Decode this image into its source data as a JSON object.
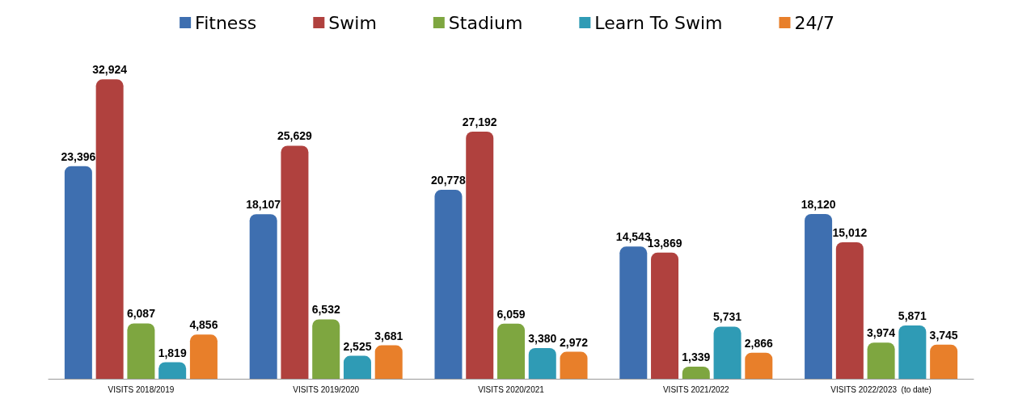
{
  "chart_data": {
    "type": "bar",
    "categories": [
      "VISITS 2018/2019",
      "VISITS 2019/2020",
      "VISITS 2020/2021",
      "VISITS 2021/2022",
      "VISITS 2022/2023  (to date)"
    ],
    "series": [
      {
        "name": "Fitness",
        "color": "#3e6fb0",
        "values": [
          23396,
          18107,
          20778,
          14543,
          18120
        ],
        "value_labels": [
          "23,396",
          "18,107",
          "20,778",
          "14,543",
          "18,120"
        ]
      },
      {
        "name": "Swim",
        "color": "#b0413e",
        "values": [
          32924,
          25629,
          27192,
          13869,
          15012
        ],
        "value_labels": [
          "32,924",
          "25,629",
          "27,192",
          "13,869",
          "15,012"
        ]
      },
      {
        "name": "Stadium",
        "color": "#7ea640",
        "values": [
          6087,
          6532,
          6059,
          1339,
          3974
        ],
        "value_labels": [
          "6,087",
          "6,532",
          "6,059",
          "1,339",
          "3,974"
        ]
      },
      {
        "name": "Learn To Swim",
        "color": "#2f9bb5",
        "values": [
          1819,
          2525,
          3380,
          5731,
          5871
        ],
        "value_labels": [
          "1,819",
          "2,525",
          "3,380",
          "5,731",
          "5,871"
        ]
      },
      {
        "name": "24/7",
        "color": "#e87f2a",
        "values": [
          4856,
          3681,
          2972,
          2866,
          3745
        ],
        "value_labels": [
          "4,856",
          "3,681",
          "2,972",
          "2,866",
          "3,745"
        ]
      }
    ],
    "legend": "top"
  }
}
